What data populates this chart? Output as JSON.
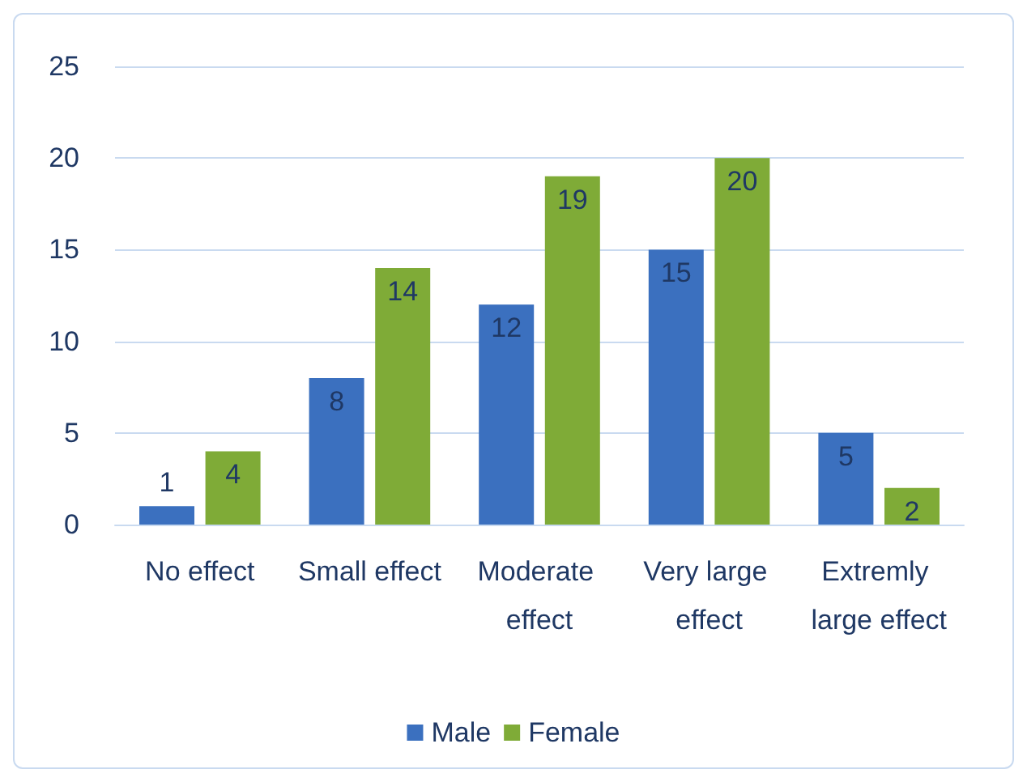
{
  "chart_data": {
    "type": "bar",
    "categories": [
      "No effect",
      "Small effect",
      "Moderate effect",
      "Very large effect",
      "Extremly large effect"
    ],
    "series": [
      {
        "name": "Male",
        "color": "#3b70bf",
        "values": [
          1,
          8,
          12,
          15,
          5
        ]
      },
      {
        "name": "Female",
        "color": "#7fab37",
        "values": [
          4,
          14,
          19,
          20,
          2
        ]
      }
    ],
    "ylim": [
      0,
      25
    ],
    "yticks": [
      0,
      5,
      10,
      15,
      20,
      25
    ],
    "grid": "y",
    "legend": "bottom",
    "data_labels": true
  }
}
